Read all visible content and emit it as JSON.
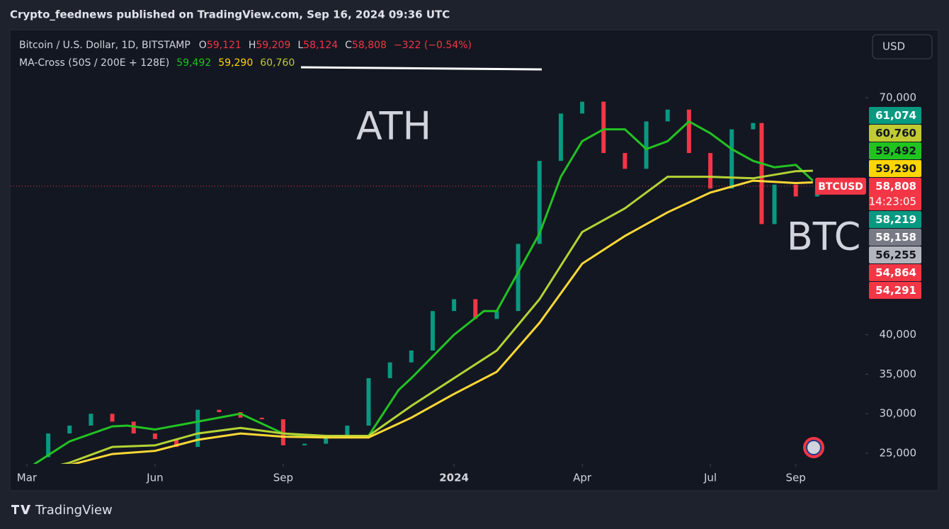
{
  "header": {
    "publisher": "Crypto_feednews published on TradingView.com, Sep 16, 2024 09:36 UTC"
  },
  "chart_data": {
    "type": "candles",
    "legend": {
      "symbol": "Bitcoin / U.S. Dollar, 1D, BITSTAMP",
      "ohlc": [
        {
          "key": "O",
          "value": "59,121"
        },
        {
          "key": "H",
          "value": "59,209"
        },
        {
          "key": "L",
          "value": "58,124"
        },
        {
          "key": "C",
          "value": "58,808"
        }
      ],
      "change": "−322 (−0.54%)",
      "indicator": "MA-Cross (50S / 200E + 128E)",
      "indicator_values": [
        "59,492",
        "59,290",
        "60,760"
      ]
    },
    "currency": "USD",
    "annotations": [
      "ATH",
      "BTC"
    ],
    "symbol_tag": "BTCUSD",
    "last_price": 58808,
    "xlim": [
      -0.38,
      19.63
    ],
    "xticks": [
      {
        "value": 0,
        "label": "Mar"
      },
      {
        "value": 3,
        "label": "Jun"
      },
      {
        "value": 6,
        "label": "Sep"
      },
      {
        "value": 10,
        "label": "2024"
      },
      {
        "value": 13,
        "label": "Apr"
      },
      {
        "value": 16,
        "label": "Jul"
      },
      {
        "value": 18,
        "label": "Sep"
      }
    ],
    "ylim": [
      23656,
      78336
    ],
    "yticks": [
      {
        "value": 25000,
        "label": "25,000"
      },
      {
        "value": 30000,
        "label": "30,000"
      },
      {
        "value": 35000,
        "label": "35,000"
      },
      {
        "value": 40000,
        "label": "40,000"
      },
      {
        "value": 70000,
        "label": "70,000"
      }
    ],
    "price": {
      "up_color": "#089981",
      "down_color": "#f23645",
      "x": [
        0,
        0.5,
        1,
        1.5,
        2,
        2.5,
        3,
        3.5,
        4,
        4.5,
        5,
        5.5,
        6,
        6.5,
        7,
        7.5,
        8,
        8.5,
        9,
        9.5,
        10,
        10.5,
        11,
        11.5,
        12,
        12.5,
        13,
        13.5,
        14,
        14.5,
        15,
        15.5,
        16,
        16.5,
        17,
        17.2,
        17.5,
        18,
        18.5
      ],
      "values": [
        24500,
        27500,
        28500,
        30000,
        29000,
        27500,
        26800,
        25800,
        30500,
        30200,
        29500,
        29300,
        26000,
        26200,
        27000,
        28500,
        34500,
        36500,
        38000,
        43000,
        44500,
        42000,
        43000,
        51500,
        62000,
        68000,
        69500,
        63000,
        61000,
        67000,
        68500,
        63000,
        58500,
        66000,
        66800,
        54000,
        59000,
        57500,
        58800
      ]
    },
    "series": [
      {
        "color": "#22c322",
        "x": [
          0,
          1,
          2,
          2.35,
          3,
          4,
          5,
          6,
          7,
          8,
          8.7,
          9,
          10,
          10.7,
          11,
          12,
          12.5,
          13,
          13.5,
          14,
          14.5,
          15,
          15.5,
          16,
          16.5,
          17,
          17.5,
          18,
          18.4
        ],
        "values": [
          23000,
          26500,
          28400,
          28500,
          28000,
          29000,
          30000,
          27500,
          27000,
          27200,
          33000,
          34500,
          40000,
          43000,
          43000,
          52800,
          60000,
          64500,
          66000,
          66000,
          63500,
          64500,
          67000,
          65500,
          63500,
          62000,
          61200,
          61500,
          59500
        ]
      },
      {
        "color": "#b5d334",
        "x": [
          0,
          1,
          2,
          3,
          4,
          5,
          6,
          7,
          8,
          9,
          10,
          11,
          12,
          13,
          14,
          15,
          16,
          17,
          18,
          18.4
        ],
        "values": [
          22500,
          23800,
          25800,
          26000,
          27500,
          28200,
          27500,
          27200,
          27200,
          31000,
          34500,
          38000,
          44500,
          53000,
          56000,
          60000,
          60000,
          59800,
          60700,
          60760
        ]
      },
      {
        "color": "#fdd835",
        "x": [
          0,
          1,
          2,
          3,
          4,
          5,
          6,
          7,
          8,
          9,
          10,
          11,
          12,
          13,
          14,
          15,
          16,
          17,
          18,
          18.4
        ],
        "values": [
          22800,
          23500,
          24900,
          25300,
          26700,
          27500,
          27100,
          27000,
          27000,
          29500,
          32500,
          35300,
          41500,
          49000,
          52500,
          55500,
          58000,
          59500,
          59200,
          59290
        ]
      }
    ],
    "price_tags": [
      {
        "label": "61,074",
        "color": "#089981",
        "text": "#ffffff"
      },
      {
        "label": "60,760",
        "color": "#c0ca33",
        "text": "#131722"
      },
      {
        "label": "59,492",
        "color": "#1fc41f",
        "text": "#131722"
      },
      {
        "label": "59,290",
        "color": "#ffd600",
        "text": "#131722"
      },
      {
        "label": "58,808",
        "sub": "14:23:05",
        "color": "#f23645",
        "text": "#ffffff"
      },
      {
        "label": "58,219",
        "color": "#089981",
        "text": "#ffffff"
      },
      {
        "label": "58,158",
        "color": "#787b86",
        "text": "#ffffff"
      },
      {
        "label": "56,255",
        "color": "#b2b5be",
        "text": "#131722"
      },
      {
        "label": "54,864",
        "color": "#f23645",
        "text": "#ffffff"
      },
      {
        "label": "54,291",
        "color": "#f23645",
        "text": "#ffffff"
      }
    ]
  },
  "footer": {
    "brand": "TradingView"
  }
}
